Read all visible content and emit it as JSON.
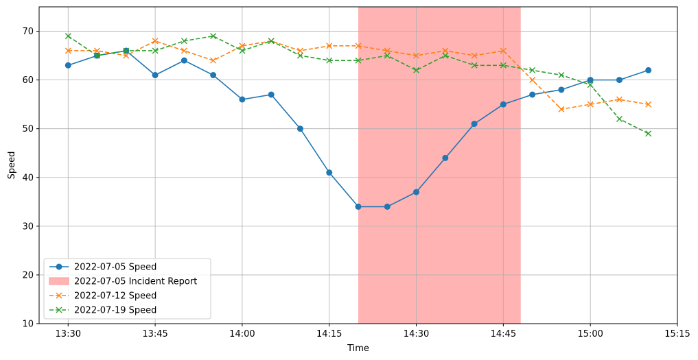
{
  "chart_data": {
    "type": "line",
    "xlabel": "Time",
    "ylabel": "Speed",
    "ylim": [
      10,
      75
    ],
    "xlim": [
      "13:25",
      "15:15"
    ],
    "x_ticks": [
      "13:30",
      "13:45",
      "14:00",
      "14:15",
      "14:30",
      "14:45",
      "15:00",
      "15:15"
    ],
    "y_ticks": [
      10,
      20,
      30,
      40,
      50,
      60,
      70
    ],
    "grid": true,
    "legend_position": "lower-left",
    "x": [
      "13:30",
      "13:35",
      "13:40",
      "13:45",
      "13:50",
      "13:55",
      "14:00",
      "14:05",
      "14:10",
      "14:15",
      "14:20",
      "14:25",
      "14:30",
      "14:35",
      "14:40",
      "14:45",
      "14:50",
      "14:55",
      "15:00",
      "15:05",
      "15:10"
    ],
    "series": [
      {
        "name": "2022-07-05 Speed",
        "color": "#1f77b4",
        "style": "solid",
        "marker": "circle",
        "values": [
          63,
          65,
          66,
          61,
          64,
          61,
          56,
          57,
          50,
          41,
          34,
          34,
          37,
          44,
          51,
          55,
          57,
          58,
          60,
          60,
          62
        ]
      },
      {
        "name": "2022-07-12 Speed",
        "color": "#ff7f0e",
        "style": "dashed",
        "marker": "x",
        "values": [
          66,
          66,
          65,
          68,
          66,
          64,
          67,
          68,
          66,
          67,
          67,
          66,
          65,
          66,
          65,
          66,
          60,
          54,
          55,
          56,
          55
        ]
      },
      {
        "name": "2022-07-19 Speed",
        "color": "#2ca02c",
        "style": "dashed",
        "marker": "x",
        "values": [
          69,
          65,
          66,
          66,
          68,
          69,
          66,
          68,
          65,
          64,
          64,
          65,
          62,
          65,
          63,
          63,
          62,
          61,
          59,
          52,
          49
        ]
      }
    ],
    "shaded_regions": [
      {
        "name": "2022-07-05 Incident Report",
        "color": "#ff9999",
        "start": "14:20",
        "end": "14:48"
      }
    ]
  }
}
